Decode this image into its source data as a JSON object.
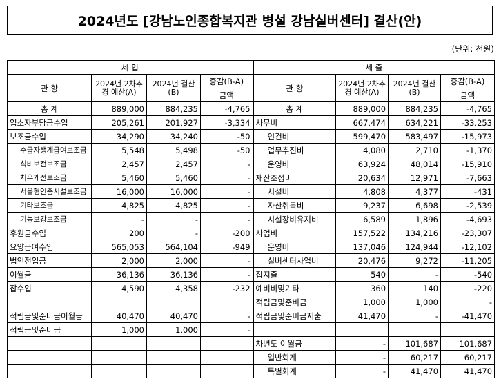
{
  "title": "2024년도 [강남노인종합복지관 병설 강남실버센터] 결산(안)",
  "unit": "(단위: 천원)",
  "headers": {
    "income": "세 입",
    "expense": "세 출",
    "kwanhang": "관 항",
    "budget": "2024년 2차추경 예산(A)",
    "settle": "2024년 결산(B)",
    "diff": "증감(B-A)",
    "amount": "금액"
  },
  "rows": [
    [
      "총 계",
      "889,000",
      "884,235",
      "-4,765",
      "총 계",
      "889,000",
      "884,235",
      "-4,765"
    ],
    [
      "입소자부담금수입",
      "205,261",
      "201,927",
      "-3,334",
      "사무비",
      "667,474",
      "634,221",
      "-33,253"
    ],
    [
      "보조금수입",
      "34,290",
      "34,240",
      "-50",
      "인건비",
      "599,470",
      "583,497",
      "-15,973"
    ],
    [
      "수급자생계급여보조금",
      "5,548",
      "5,498",
      "-50",
      "업무추진비",
      "4,080",
      "2,710",
      "-1,370"
    ],
    [
      "식비보전보조금",
      "2,457",
      "2,457",
      "-",
      "운영비",
      "63,924",
      "48,014",
      "-15,910"
    ],
    [
      "처우개선보조금",
      "5,460",
      "5,460",
      "-",
      "재산조성비",
      "20,634",
      "12,971",
      "-7,663"
    ],
    [
      "서울형인증시설보조금",
      "16,000",
      "16,000",
      "-",
      "시설비",
      "4,808",
      "4,377",
      "-431"
    ],
    [
      "기타보조금",
      "4,825",
      "4,825",
      "-",
      "자산취득비",
      "9,237",
      "6,698",
      "-2,539"
    ],
    [
      "기능보강보조금",
      "-",
      "-",
      "-",
      "시설장비유지비",
      "6,589",
      "1,896",
      "-4,693"
    ],
    [
      "후원금수입",
      "200",
      "-",
      "-200",
      "사업비",
      "157,522",
      "134,216",
      "-23,307"
    ],
    [
      "요양급여수입",
      "565,053",
      "564,104",
      "-949",
      "운영비",
      "137,046",
      "124,944",
      "-12,102"
    ],
    [
      "법인전입금",
      "2,000",
      "2,000",
      "-",
      "실버센터사업비",
      "20,476",
      "9,272",
      "-11,205"
    ],
    [
      "이월금",
      "36,136",
      "36,136",
      "-",
      "잡지출",
      "540",
      "-",
      "-540"
    ],
    [
      "잡수입",
      "4,590",
      "4,358",
      "-232",
      "예비비및기타",
      "360",
      "140",
      "-220"
    ],
    [
      "",
      "",
      "",
      "",
      "적립금및준비금",
      "1,000",
      "1,000",
      "-"
    ],
    [
      "적립금및준비금이월금",
      "40,470",
      "40,470",
      "-",
      "적립금및준비금지출",
      "41,470",
      "-",
      "-41,470"
    ],
    [
      "적립금및준비금",
      "1,000",
      "1,000",
      "-",
      "",
      "",
      "",
      ""
    ],
    [
      "",
      "",
      "",
      "",
      "차년도 이월금",
      "-",
      "101,687",
      "101,687"
    ],
    [
      "",
      "",
      "",
      "",
      "일반회계",
      "-",
      "60,217",
      "60,217"
    ],
    [
      "",
      "",
      "",
      "",
      "특별회계",
      "-",
      "41,470",
      "41,470"
    ]
  ]
}
